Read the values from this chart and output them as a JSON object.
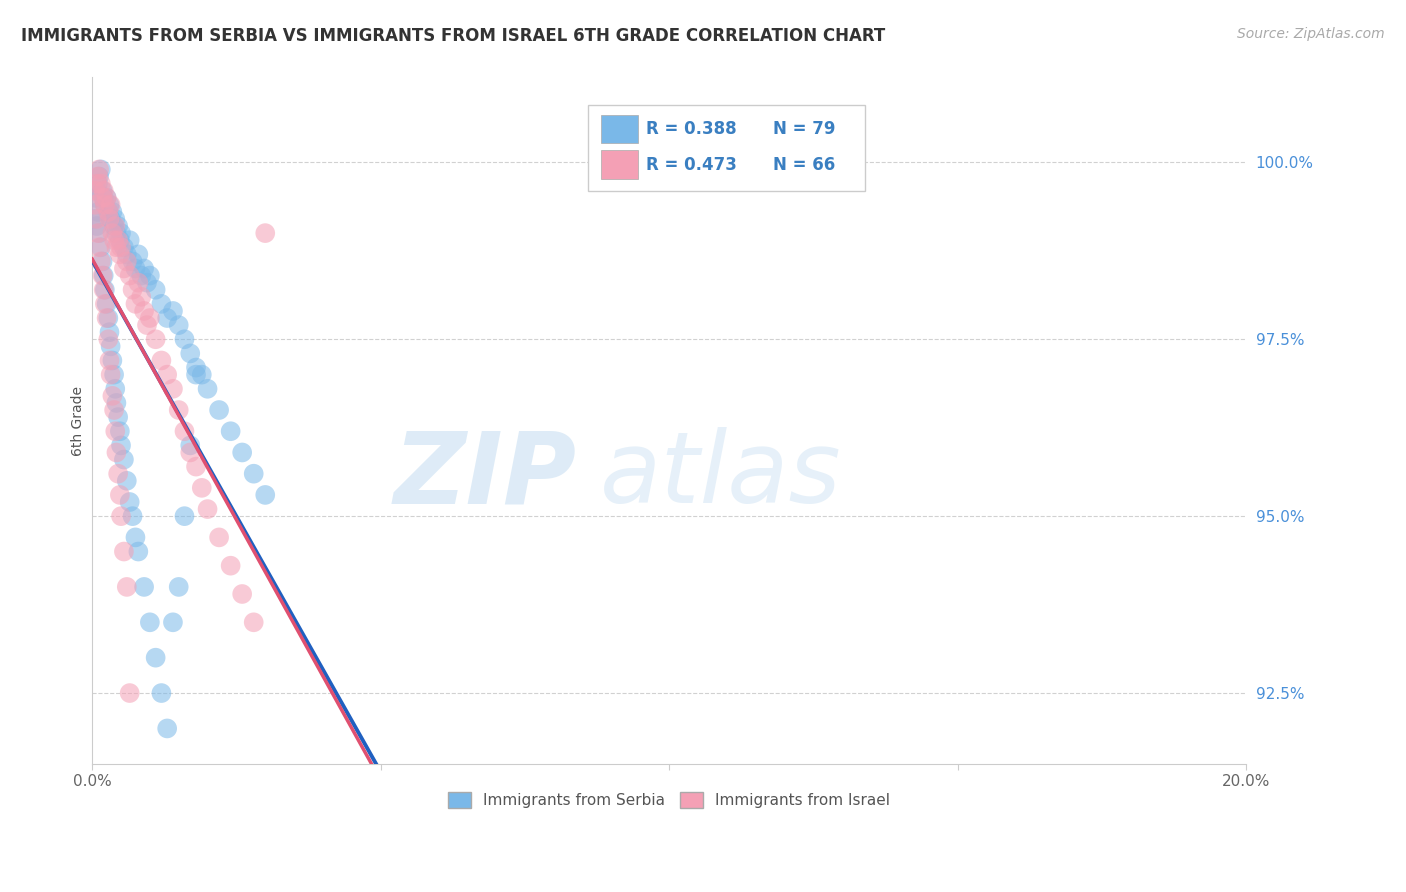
{
  "title": "IMMIGRANTS FROM SERBIA VS IMMIGRANTS FROM ISRAEL 6TH GRADE CORRELATION CHART",
  "source_text": "Source: ZipAtlas.com",
  "ylabel": "6th Grade",
  "xlim": [
    0.0,
    20.0
  ],
  "ylim": [
    91.5,
    101.2
  ],
  "yticks": [
    92.5,
    95.0,
    97.5,
    100.0
  ],
  "ytick_labels": [
    "92.5%",
    "95.0%",
    "97.5%",
    "100.0%"
  ],
  "xticks": [
    0.0,
    5.0,
    10.0,
    15.0,
    20.0
  ],
  "xtick_labels": [
    "0.0%",
    "",
    "",
    "",
    "20.0%"
  ],
  "serbia_color": "#7ab8e8",
  "israel_color": "#f4a0b5",
  "serbia_line_color": "#2060c0",
  "israel_line_color": "#e05070",
  "serbia_R": 0.388,
  "serbia_N": 79,
  "israel_R": 0.473,
  "israel_N": 66,
  "watermark_zip": "ZIP",
  "watermark_atlas": "atlas",
  "serbia_x": [
    0.05,
    0.08,
    0.1,
    0.12,
    0.15,
    0.18,
    0.2,
    0.22,
    0.25,
    0.28,
    0.3,
    0.32,
    0.35,
    0.38,
    0.4,
    0.42,
    0.45,
    0.48,
    0.5,
    0.55,
    0.6,
    0.65,
    0.7,
    0.75,
    0.8,
    0.85,
    0.9,
    0.95,
    1.0,
    1.1,
    1.2,
    1.3,
    1.4,
    1.5,
    1.6,
    1.7,
    1.8,
    1.9,
    2.0,
    2.2,
    2.4,
    2.6,
    2.8,
    3.0,
    0.05,
    0.08,
    0.1,
    0.12,
    0.15,
    0.18,
    0.2,
    0.22,
    0.25,
    0.28,
    0.3,
    0.32,
    0.35,
    0.38,
    0.4,
    0.42,
    0.45,
    0.48,
    0.5,
    0.55,
    0.6,
    0.65,
    0.7,
    0.75,
    0.8,
    0.9,
    1.0,
    1.1,
    1.2,
    1.3,
    1.4,
    1.5,
    1.6,
    1.7,
    1.8
  ],
  "serbia_y": [
    99.5,
    99.6,
    99.7,
    99.8,
    99.9,
    99.6,
    99.5,
    99.4,
    99.5,
    99.3,
    99.4,
    99.2,
    99.3,
    99.1,
    99.2,
    99.0,
    99.1,
    98.9,
    99.0,
    98.8,
    98.7,
    98.9,
    98.6,
    98.5,
    98.7,
    98.4,
    98.5,
    98.3,
    98.4,
    98.2,
    98.0,
    97.8,
    97.9,
    97.7,
    97.5,
    97.3,
    97.1,
    97.0,
    96.8,
    96.5,
    96.2,
    95.9,
    95.6,
    95.3,
    99.2,
    99.1,
    99.3,
    99.0,
    98.8,
    98.6,
    98.4,
    98.2,
    98.0,
    97.8,
    97.6,
    97.4,
    97.2,
    97.0,
    96.8,
    96.6,
    96.4,
    96.2,
    96.0,
    95.8,
    95.5,
    95.2,
    95.0,
    94.7,
    94.5,
    94.0,
    93.5,
    93.0,
    92.5,
    92.0,
    93.5,
    94.0,
    95.0,
    96.0,
    97.0
  ],
  "israel_x": [
    0.05,
    0.08,
    0.1,
    0.12,
    0.15,
    0.18,
    0.2,
    0.22,
    0.25,
    0.28,
    0.3,
    0.32,
    0.35,
    0.38,
    0.4,
    0.42,
    0.45,
    0.48,
    0.5,
    0.55,
    0.6,
    0.65,
    0.7,
    0.75,
    0.8,
    0.85,
    0.9,
    0.95,
    1.0,
    1.1,
    1.2,
    1.3,
    1.4,
    1.5,
    1.6,
    1.7,
    1.8,
    1.9,
    2.0,
    2.2,
    2.4,
    2.6,
    2.8,
    3.0,
    0.05,
    0.08,
    0.1,
    0.12,
    0.15,
    0.18,
    0.2,
    0.22,
    0.25,
    0.28,
    0.3,
    0.32,
    0.35,
    0.38,
    0.4,
    0.42,
    0.45,
    0.48,
    0.5,
    0.55,
    0.6,
    0.65
  ],
  "israel_y": [
    99.6,
    99.7,
    99.8,
    99.9,
    99.7,
    99.5,
    99.6,
    99.4,
    99.5,
    99.3,
    99.2,
    99.4,
    99.0,
    98.9,
    99.1,
    98.8,
    98.9,
    98.7,
    98.8,
    98.5,
    98.6,
    98.4,
    98.2,
    98.0,
    98.3,
    98.1,
    97.9,
    97.7,
    97.8,
    97.5,
    97.2,
    97.0,
    96.8,
    96.5,
    96.2,
    95.9,
    95.7,
    95.4,
    95.1,
    94.7,
    94.3,
    93.9,
    93.5,
    99.0,
    99.4,
    99.2,
    99.0,
    98.8,
    98.6,
    98.4,
    98.2,
    98.0,
    97.8,
    97.5,
    97.2,
    97.0,
    96.7,
    96.5,
    96.2,
    95.9,
    95.6,
    95.3,
    95.0,
    94.5,
    94.0,
    92.5
  ]
}
